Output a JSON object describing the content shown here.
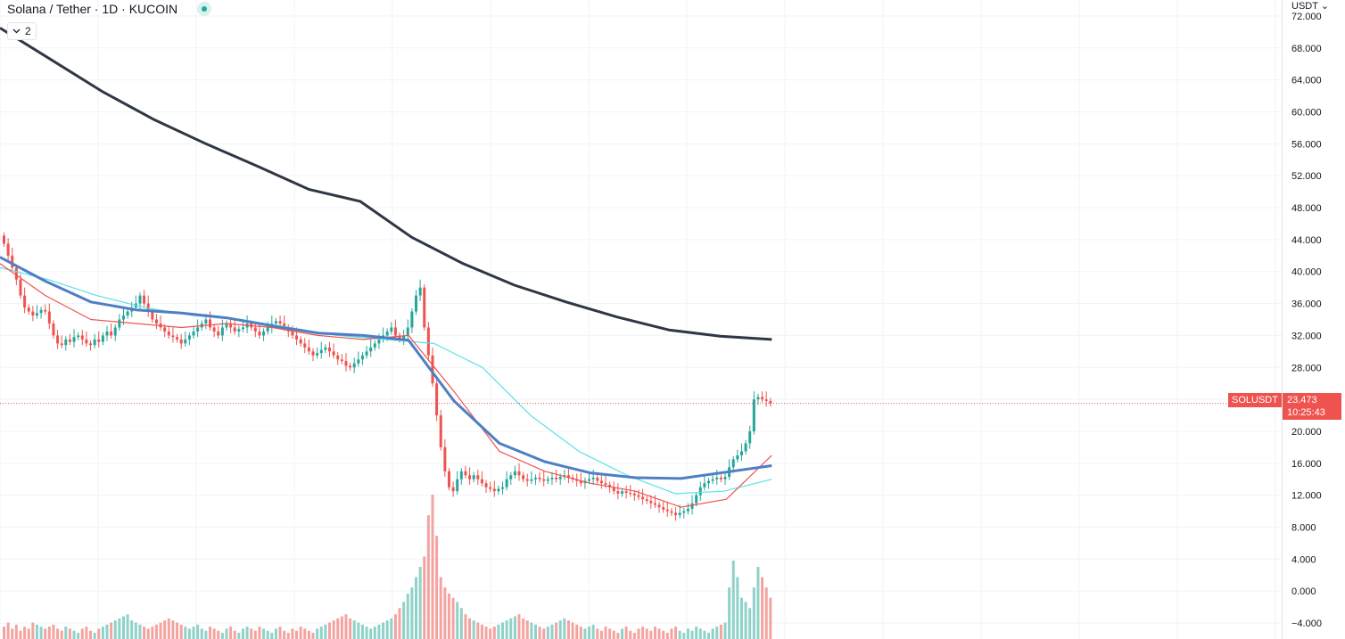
{
  "header": {
    "title": "Solana / Tether · 1D · KUCOIN",
    "indicator_count": "2",
    "currency": "USDT"
  },
  "price_tag": {
    "symbol": "SOLUSDT",
    "price": "23.473",
    "countdown": "10:25:43"
  },
  "colors": {
    "up": "#26a69a",
    "down": "#ef5350",
    "ma_short": "#ef5350",
    "ma_mid": "#4e7fc4",
    "ma_cyan": "#5ce1e6",
    "ma_long": "#2f3744",
    "vol_up": "#8fd2c9",
    "vol_down": "#f4a3a0"
  },
  "chart_data": {
    "type": "candlestick",
    "title": "Solana / Tether · 1D · KUCOIN",
    "ylabel": "USDT",
    "ylim": [
      -6,
      74
    ],
    "y_ticks": [
      72,
      68,
      64,
      60,
      56,
      52,
      48,
      44,
      40,
      36,
      32,
      28,
      24,
      20,
      16,
      12,
      8,
      4,
      0,
      -4
    ],
    "y_tick_labels": [
      "72.000",
      "68.000",
      "64.000",
      "60.000",
      "56.000",
      "52.000",
      "48.000",
      "44.000",
      "40.000",
      "36.000",
      "32.000",
      "28.000",
      "24.000",
      "20.000",
      "16.000",
      "12.000",
      "8.000",
      "4.000",
      "0.000",
      "−4.000"
    ],
    "close_series": [
      43.5,
      42,
      40.5,
      39,
      37,
      35.5,
      35,
      34.5,
      34.8,
      35.2,
      35,
      33.5,
      32,
      31,
      30.8,
      31.5,
      31.2,
      31.8,
      32,
      31.5,
      31,
      30.8,
      31.5,
      31.2,
      32,
      32.5,
      32,
      33,
      34,
      34.5,
      35,
      35.5,
      36,
      37,
      36,
      35,
      34,
      33.5,
      33,
      32.5,
      32,
      31.8,
      31.5,
      31,
      31.5,
      32,
      32.5,
      33,
      33.5,
      34,
      33,
      32.5,
      32,
      33,
      33.5,
      33,
      32.5,
      32.8,
      33,
      33.5,
      33,
      32.5,
      32,
      32.5,
      33,
      33.5,
      33.8,
      33.5,
      33,
      32.5,
      32,
      31.5,
      31,
      30.5,
      30,
      29.5,
      29.8,
      30.2,
      30.5,
      30,
      29.5,
      29,
      28.8,
      28.2,
      28,
      28.5,
      29,
      29.5,
      30,
      30.5,
      31,
      31.5,
      32,
      32.5,
      33,
      32,
      31.5,
      32,
      33,
      35,
      37,
      38,
      33,
      29.5,
      26,
      22,
      18,
      15,
      13,
      12.5,
      14,
      15,
      14.5,
      14,
      14.5,
      14,
      13.5,
      13,
      12.8,
      12.5,
      12.8,
      13,
      14,
      14.5,
      15,
      14.5,
      14,
      13.8,
      14,
      14.2,
      14,
      13.8,
      14,
      14.2,
      14,
      14.3,
      14.5,
      14.2,
      14,
      13.8,
      13.5,
      13.8,
      14,
      14.2,
      13.8,
      13.5,
      13.3,
      13,
      12.5,
      12.2,
      12.5,
      12.3,
      12.2,
      12,
      11.8,
      11.5,
      11.3,
      11,
      10.8,
      10.5,
      10.2,
      10,
      9.8,
      9.5,
      9.8,
      10,
      10.3,
      11,
      12,
      13,
      13.5,
      13.8,
      14,
      14.2,
      14,
      14.3,
      15.5,
      16.5,
      17,
      17.5,
      18.5,
      20,
      24,
      24.3,
      24,
      23.8,
      23.5
    ],
    "vol_series": [
      6,
      8,
      5,
      7,
      4,
      6,
      5,
      8,
      7,
      6,
      5,
      6,
      7,
      5,
      4,
      6,
      5,
      4,
      3,
      5,
      6,
      4,
      3,
      5,
      6,
      7,
      8,
      9,
      10,
      11,
      12,
      9,
      8,
      7,
      6,
      5,
      6,
      7,
      8,
      9,
      10,
      9,
      8,
      7,
      6,
      5,
      6,
      7,
      5,
      4,
      6,
      5,
      4,
      3,
      5,
      6,
      4,
      3,
      5,
      6,
      5,
      4,
      6,
      5,
      4,
      3,
      5,
      6,
      4,
      3,
      5,
      4,
      6,
      5,
      4,
      3,
      5,
      6,
      7,
      8,
      9,
      10,
      11,
      12,
      10,
      9,
      8,
      7,
      6,
      5,
      6,
      7,
      8,
      9,
      10,
      12,
      15,
      18,
      22,
      25,
      30,
      35,
      40,
      60,
      70,
      50,
      30,
      25,
      22,
      20,
      18,
      15,
      12,
      10,
      9,
      8,
      7,
      6,
      5,
      6,
      7,
      8,
      9,
      10,
      11,
      12,
      10,
      9,
      8,
      7,
      6,
      5,
      6,
      7,
      8,
      9,
      10,
      9,
      8,
      7,
      6,
      5,
      6,
      7,
      5,
      4,
      6,
      5,
      4,
      3,
      5,
      6,
      4,
      3,
      5,
      6,
      5,
      4,
      6,
      5,
      4,
      3,
      5,
      6,
      4,
      3,
      5,
      4,
      6,
      5,
      4,
      3,
      5,
      6,
      7,
      8,
      25,
      38,
      30,
      20,
      18,
      15,
      25,
      35,
      30,
      25,
      20,
      15,
      12,
      10,
      25,
      40,
      35,
      28,
      32,
      30
    ],
    "ma_long_series": [
      70.5,
      66.5,
      62.5,
      59,
      56,
      53.2,
      50.3,
      48.8,
      44.3,
      41,
      38.3,
      36.2,
      34.3,
      32.7,
      31.9,
      31.5
    ],
    "ma_mid_series": [
      41.8,
      38.8,
      36.2,
      35.2,
      34.8,
      34.2,
      33.2,
      32.3,
      32,
      31.4,
      23.8,
      18.5,
      16.2,
      14.8,
      14.2,
      14.1,
      14.9,
      15.7
    ],
    "ma_short_series": [
      41,
      37,
      34,
      33.5,
      33,
      33.5,
      33,
      32,
      31.5,
      32,
      25,
      17.5,
      15,
      13.5,
      12.5,
      10.5,
      11.5,
      17
    ],
    "ma_cyan_series": [
      40.5,
      39,
      37,
      35.5,
      34.5,
      34,
      33,
      32,
      31.5,
      31,
      28,
      22,
      17.5,
      14.5,
      12.2,
      12.5,
      14
    ]
  }
}
